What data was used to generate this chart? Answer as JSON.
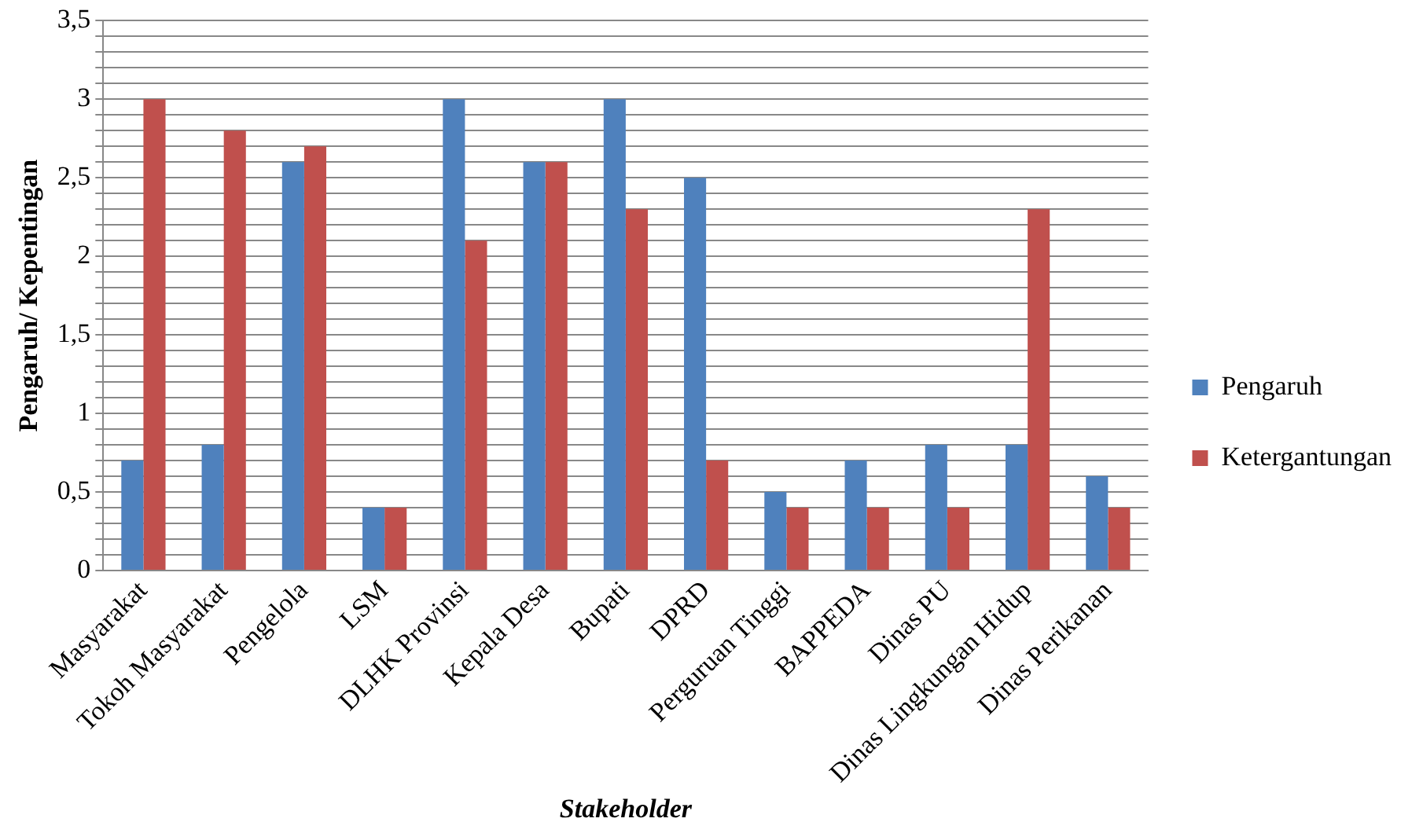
{
  "chart_data": {
    "type": "bar",
    "xlabel": "Stakeholder",
    "ylabel": "Pengaruh/ Kepentingan",
    "categories": [
      "Masyarakat",
      "Tokoh Masyarakat",
      "Pengelola",
      "LSM",
      "DLHK Provinsi",
      "Kepala Desa",
      "Bupati",
      "DPRD",
      "Perguruan Tinggi",
      "BAPPEDA",
      "Dinas PU",
      "Dinas Lingkungan Hidup",
      "Dinas Perikanan"
    ],
    "series": [
      {
        "name": "Pengaruh",
        "color": "#4f81bd",
        "values": [
          0.7,
          0.8,
          2.6,
          0.4,
          3,
          2.6,
          3,
          2.5,
          0.5,
          0.7,
          0.8,
          0.8,
          0.6
        ]
      },
      {
        "name": "Ketergantungan",
        "color": "#c0504d",
        "values": [
          3,
          2.8,
          2.7,
          0.4,
          2.1,
          2.6,
          2.3,
          0.7,
          0.4,
          0.4,
          0.4,
          2.3,
          0.4
        ]
      }
    ],
    "ylim": [
      0,
      3.5
    ],
    "yticks": [
      {
        "value": 0,
        "label": "0"
      },
      {
        "value": 0.1,
        "label": null
      },
      {
        "value": 0.2,
        "label": null
      },
      {
        "value": 0.3,
        "label": null
      },
      {
        "value": 0.4,
        "label": null
      },
      {
        "value": 0.5,
        "label": "0,5"
      },
      {
        "value": 0.6,
        "label": null
      },
      {
        "value": 0.7,
        "label": null
      },
      {
        "value": 0.8,
        "label": null
      },
      {
        "value": 0.9,
        "label": null
      },
      {
        "value": 1,
        "label": "1"
      },
      {
        "value": 1.1,
        "label": null
      },
      {
        "value": 1.2,
        "label": null
      },
      {
        "value": 1.3,
        "label": null
      },
      {
        "value": 1.4,
        "label": null
      },
      {
        "value": 1.5,
        "label": "1,5"
      },
      {
        "value": 1.6,
        "label": null
      },
      {
        "value": 1.7,
        "label": null
      },
      {
        "value": 1.8,
        "label": null
      },
      {
        "value": 1.9,
        "label": null
      },
      {
        "value": 2,
        "label": "2"
      },
      {
        "value": 2.1,
        "label": null
      },
      {
        "value": 2.2,
        "label": null
      },
      {
        "value": 2.3,
        "label": null
      },
      {
        "value": 2.4,
        "label": null
      },
      {
        "value": 2.5,
        "label": "2,5"
      },
      {
        "value": 2.6,
        "label": null
      },
      {
        "value": 2.7,
        "label": null
      },
      {
        "value": 2.8,
        "label": null
      },
      {
        "value": 2.9,
        "label": null
      },
      {
        "value": 3,
        "label": "3"
      },
      {
        "value": 3.1,
        "label": null
      },
      {
        "value": 3.2,
        "label": null
      },
      {
        "value": 3.3,
        "label": null
      },
      {
        "value": 3.4,
        "label": null
      },
      {
        "value": 3.5,
        "label": "3,5"
      }
    ],
    "grid": "y",
    "legend": "right"
  }
}
